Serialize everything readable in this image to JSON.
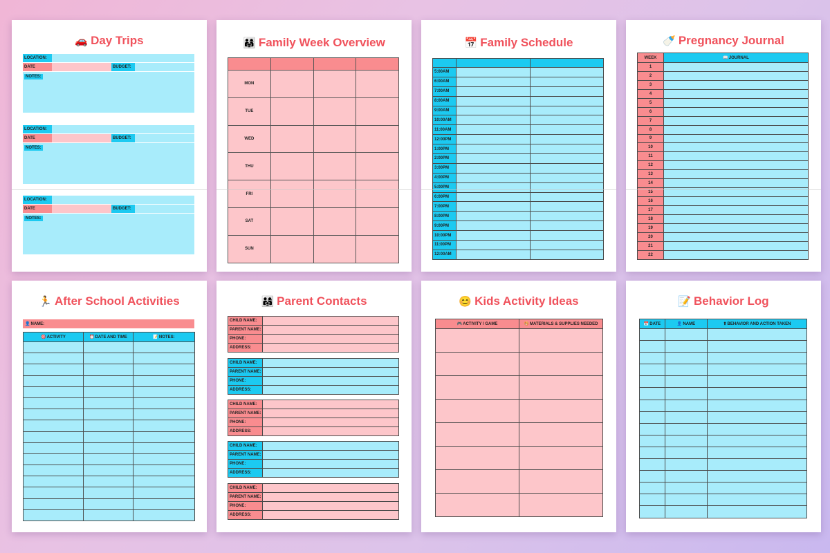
{
  "pages": {
    "day_trips": {
      "icon": "🚗",
      "title": "Day Trips",
      "location_label": "LOCATION:",
      "date_label": "DATE",
      "budget_label": "BUDGET:",
      "notes_label": "NOTES:"
    },
    "family_week": {
      "icon": "👨‍👩‍👧",
      "title": "Family Week Overview",
      "days": [
        "MON",
        "TUE",
        "WED",
        "THU",
        "FRI",
        "SAT",
        "SUN"
      ]
    },
    "family_schedule": {
      "icon": "📅",
      "title": "Family Schedule",
      "times": [
        "5:00AM",
        "6:00AM",
        "7:00AM",
        "8:00AM",
        "9:00AM",
        "10:00AM",
        "11:00AM",
        "12:00PM",
        "1:00PM",
        "2:00PM",
        "3:00PM",
        "4:00PM",
        "5:00PM",
        "6:00PM",
        "7:00PM",
        "8:00PM",
        "9:00PM",
        "10:00PM",
        "11:00PM",
        "12:00AM"
      ]
    },
    "pregnancy": {
      "icon": "🍼",
      "title": "Pregnancy Journal",
      "week_header": "WEEK",
      "journal_header": "JOURNAL",
      "journal_icon": "📖",
      "weeks": [
        "1",
        "2",
        "3",
        "4",
        "5",
        "6",
        "7",
        "8",
        "9",
        "10",
        "11",
        "12",
        "13",
        "14",
        "15",
        "16",
        "17",
        "18",
        "19",
        "20",
        "21",
        "22"
      ]
    },
    "after_school": {
      "icon": "🏃",
      "title": "After School Activities",
      "name_label": "NAME:",
      "name_icon": "👤",
      "columns": [
        "ACTIVITY",
        "DATE AND TIME",
        "NOTES:"
      ],
      "column_icons": [
        "🎯",
        "⏰",
        "📝"
      ]
    },
    "parent_contacts": {
      "icon": "👨‍👩‍👧",
      "title": "Parent Contacts",
      "fields": [
        "CHILD NAME:",
        "PARENT NAME:",
        "PHONE:",
        "ADDRESS:"
      ]
    },
    "kids_activity": {
      "icon": "😊",
      "title": "Kids Activity Ideas",
      "columns": [
        "ACTIVITY / GAME",
        "MATERIALS & SUPPLIES NEEDED"
      ],
      "column_icons": [
        "🎮",
        "🎨"
      ]
    },
    "behavior": {
      "icon": "📝",
      "title": "Behavior Log",
      "columns": [
        "DATE",
        "NAME",
        "BEHAVIOR AND ACTION TAKEN"
      ],
      "column_icons": [
        "📅",
        "👤",
        "⬆"
      ]
    }
  },
  "colors": {
    "title": "#f0525c",
    "pink": "#fdc6ca",
    "pink_dark": "#f98c8f",
    "blue": "#a8ecfb",
    "blue_dark": "#1ccaf1"
  }
}
